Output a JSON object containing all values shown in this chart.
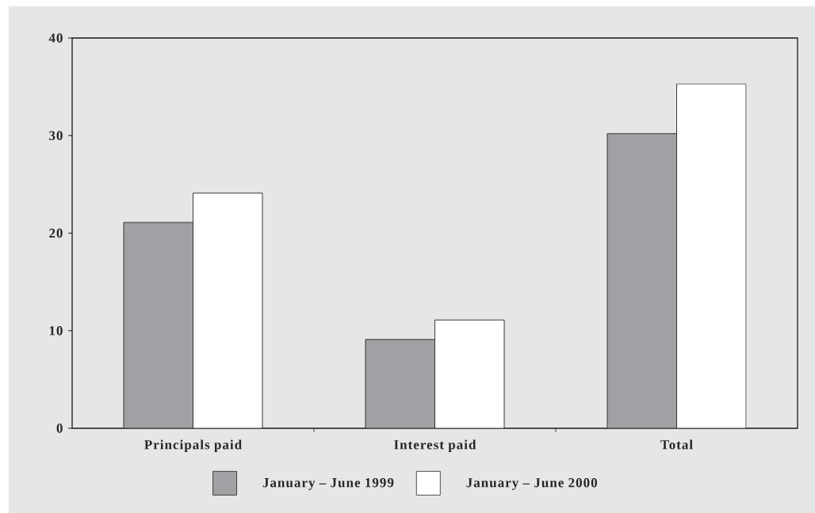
{
  "chart_data": {
    "type": "bar",
    "categories": [
      "Principals paid",
      "Interest paid",
      "Total"
    ],
    "series": [
      {
        "name": "January – June 1999",
        "color": "#a0a1a5",
        "values": [
          21.1,
          9.1,
          30.2
        ]
      },
      {
        "name": "January – June 2000",
        "color": "#ffffff",
        "values": [
          24.1,
          11.1,
          35.3
        ]
      }
    ],
    "ylim": [
      0,
      40
    ],
    "yticks": [
      0,
      10,
      20,
      30,
      40
    ],
    "legend": "bottom"
  }
}
